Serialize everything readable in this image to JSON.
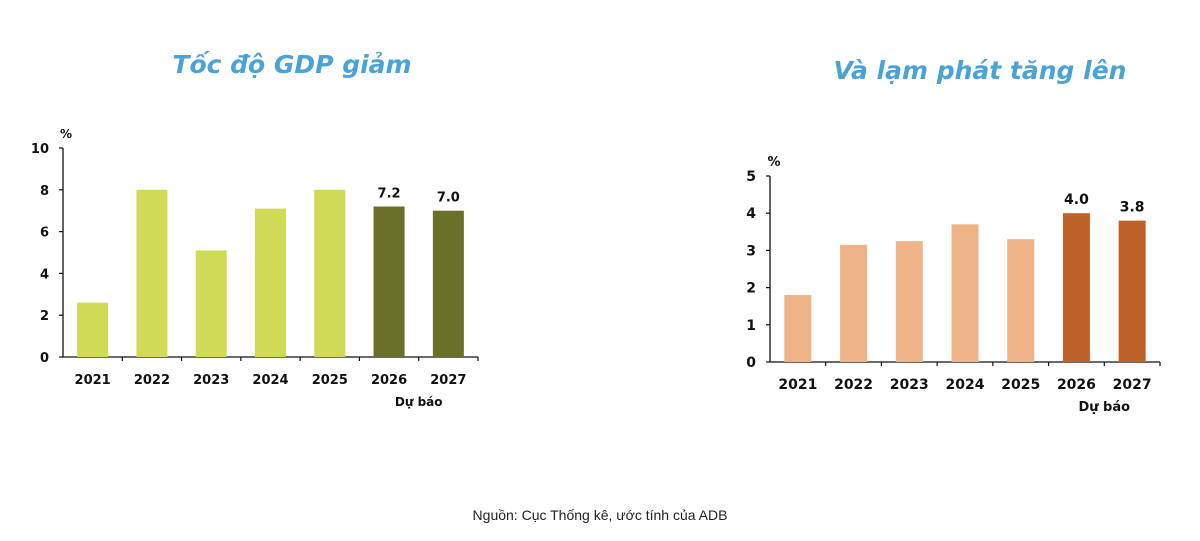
{
  "source": "Nguồn: Cục Thống kê, ước tính của ADB",
  "chart_data": [
    {
      "type": "bar",
      "title": "Tốc độ GDP giảm",
      "ylabel": "%",
      "xlabel": "",
      "ylim": [
        0,
        10
      ],
      "yticks": [
        0,
        2,
        4,
        6,
        8,
        10
      ],
      "grid": false,
      "categories": [
        "2021",
        "2022",
        "2023",
        "2024",
        "2025",
        "2026",
        "2027"
      ],
      "values": [
        2.6,
        8.0,
        5.1,
        7.1,
        8.0,
        7.2,
        7.0
      ],
      "data_labels": {
        "2026": "7.2",
        "2027": "7.0"
      },
      "forecast_label": "Dự báo",
      "colors": {
        "actual": "#cfdb57",
        "forecast": "#6a7029"
      },
      "forecast_categories": [
        "2026",
        "2027"
      ]
    },
    {
      "type": "bar",
      "title": "Và lạm phát tăng lên",
      "ylabel": "%",
      "xlabel": "",
      "ylim": [
        0,
        5
      ],
      "yticks": [
        0,
        1,
        2,
        3,
        4,
        5
      ],
      "grid": false,
      "categories": [
        "2021",
        "2022",
        "2023",
        "2024",
        "2025",
        "2026",
        "2027"
      ],
      "values": [
        1.8,
        3.15,
        3.25,
        3.7,
        3.3,
        4.0,
        3.8
      ],
      "data_labels": {
        "2026": "4.0",
        "2027": "3.8"
      },
      "forecast_label": "Dự báo",
      "colors": {
        "actual": "#eeb488",
        "forecast": "#bf622a"
      },
      "forecast_categories": [
        "2026",
        "2027"
      ]
    }
  ]
}
